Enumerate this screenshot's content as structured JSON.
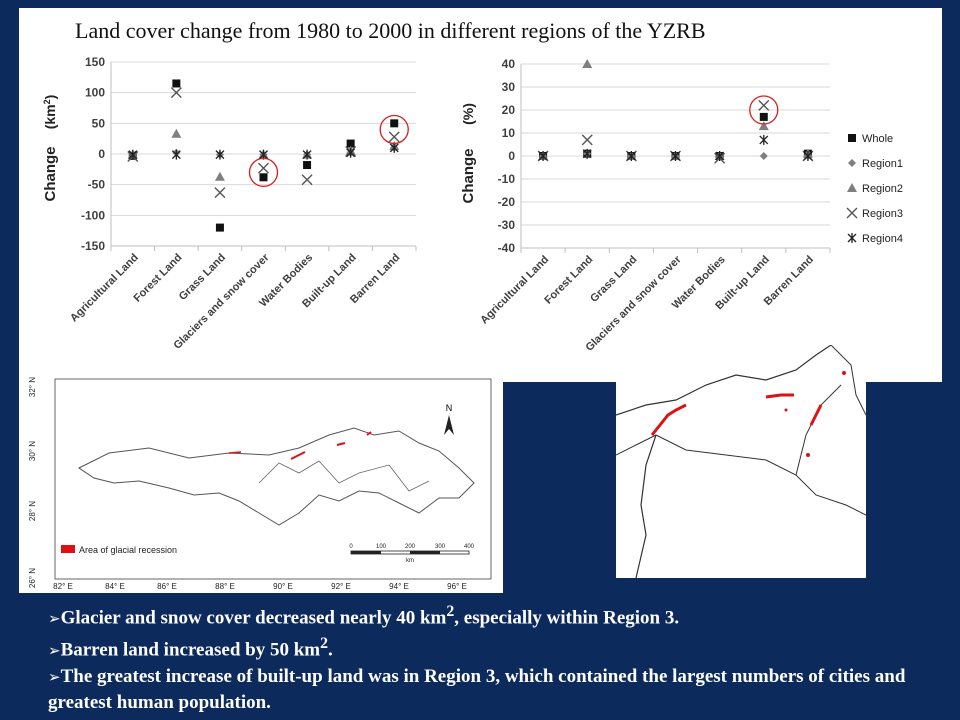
{
  "title": "Land cover change from 1980 to 2000 in different regions of the YZRB",
  "chart_data": [
    {
      "type": "scatter",
      "ylabel": "Change",
      "ylabel_unit": "(km",
      "ylabel_unit_sup": "2",
      "ylabel_unit_close": ")",
      "ylim": [
        -150,
        150
      ],
      "yticks": [
        150,
        100,
        50,
        0,
        -50,
        -100,
        -150
      ],
      "grid": true,
      "categories": [
        "Agricultural Land",
        "Forest Land",
        "Grass Land",
        "Glaciers and snow cover",
        "Water Bodies",
        "Built-up Land",
        "Barren Land"
      ],
      "series": [
        {
          "name": "Whole",
          "values": [
            -3,
            115,
            -120,
            -38,
            -18,
            17,
            50
          ]
        },
        {
          "name": "Region1",
          "values": [
            -1,
            2,
            -1,
            -1,
            -1,
            2,
            10
          ]
        },
        {
          "name": "Region2",
          "values": [
            -1,
            33,
            -37,
            -1,
            -1,
            5,
            13
          ]
        },
        {
          "name": "Region3",
          "values": [
            -4,
            100,
            -63,
            -23,
            -42,
            4,
            28
          ]
        },
        {
          "name": "Region4",
          "values": [
            -1,
            -1,
            -1,
            -1,
            -1,
            2,
            10
          ]
        }
      ],
      "highlight_circles": [
        {
          "category": "Glaciers and snow cover",
          "value": -30
        },
        {
          "category": "Barren Land",
          "value": 40
        }
      ]
    },
    {
      "type": "scatter",
      "ylabel": "Change",
      "ylabel_unit": "(%)",
      "ylim": [
        -40,
        40
      ],
      "yticks": [
        40,
        30,
        20,
        10,
        0,
        -10,
        -20,
        -30,
        -40
      ],
      "grid": true,
      "legend": "right",
      "categories": [
        "Agricultural Land",
        "Forest Land",
        "Grass Land",
        "Glaciers and snow cover",
        "Water Bodies",
        "Built-up Land",
        "Barren Land"
      ],
      "series": [
        {
          "name": "Whole",
          "values": [
            0,
            1,
            0,
            0,
            0,
            17,
            1
          ]
        },
        {
          "name": "Region1",
          "values": [
            0,
            1,
            0,
            0,
            0,
            0,
            0
          ]
        },
        {
          "name": "Region2",
          "values": [
            0,
            40,
            0,
            0,
            0,
            13,
            1
          ]
        },
        {
          "name": "Region3",
          "values": [
            0,
            7,
            0,
            0,
            -1,
            22,
            0
          ]
        },
        {
          "name": "Region4",
          "values": [
            0,
            1,
            0,
            0,
            0,
            7,
            0
          ]
        }
      ],
      "highlight_circles": [
        {
          "category": "Built-up Land",
          "value": 20
        }
      ]
    }
  ],
  "map_left": {
    "lat_labels": [
      "32° N",
      "30° N",
      "28° N",
      "26° N"
    ],
    "lon_labels": [
      "82° E",
      "84° E",
      "86° E",
      "88° E",
      "90° E",
      "92° E",
      "94° E",
      "96° E"
    ],
    "north_label": "N",
    "legend_label": "Area of glacial recession",
    "scale_labels": [
      "0",
      "100",
      "200",
      "300",
      "400"
    ],
    "scale_unit": "km",
    "legend_color": "#e01010"
  },
  "bullets": [
    {
      "text": "Glacier and snow cover decreased nearly 40 km",
      "sup": "2",
      "tail": ", especially within Region 3."
    },
    {
      "text": "Barren land increased by 50 km",
      "sup": "2",
      "tail": "."
    },
    {
      "text": "The greatest increase of built-up land was in Region 3, which contained the largest numbers of cities and greatest human population.",
      "sup": "",
      "tail": ""
    }
  ],
  "colors": {
    "background": "#0d2a5c",
    "marker": "#222222",
    "region1": "#7f7f7f",
    "region2": "#7f7f7f",
    "circle": "#d42020",
    "axis_text": "#3f3f3f"
  }
}
